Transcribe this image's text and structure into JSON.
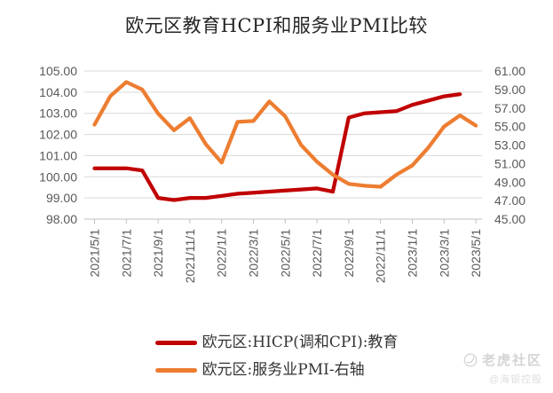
{
  "title": "欧元区教育HCPI和服务业PMI比较",
  "colors": {
    "hicp_line": "#C00000",
    "pmi_line": "#ED7D31",
    "gridline": "#D9D9D9",
    "axis_line": "#BFBFBF",
    "tick_text": "#595959",
    "title_text": "#262626",
    "legend_text": "#333333",
    "watermark_text": "#D4D4D4"
  },
  "chart_data": {
    "type": "line",
    "title": "欧元区教育HCPI和服务业PMI比较",
    "x": [
      "2021/5/1",
      "2021/6/1",
      "2021/7/1",
      "2021/8/1",
      "2021/9/1",
      "2021/10/1",
      "2021/11/1",
      "2021/12/1",
      "2022/1/1",
      "2022/2/1",
      "2022/3/1",
      "2022/4/1",
      "2022/5/1",
      "2022/6/1",
      "2022/7/1",
      "2022/8/1",
      "2022/9/1",
      "2022/10/1",
      "2022/11/1",
      "2022/12/1",
      "2023/1/1",
      "2023/2/1",
      "2023/3/1",
      "2023/4/1",
      "2023/5/1"
    ],
    "x_tick_every": 2,
    "x_tick_labels": [
      "2021/5/1",
      "2021/7/1",
      "2021/9/1",
      "2021/11/1",
      "2022/1/1",
      "2022/3/1",
      "2022/5/1",
      "2022/7/1",
      "2022/9/1",
      "2022/11/1",
      "2023/1/1",
      "2023/3/1",
      "2023/5/1"
    ],
    "series": [
      {
        "name": "欧元区:HICP(调和CPI):教育",
        "axis": "left",
        "color": "#C00000",
        "values": [
          100.4,
          100.4,
          100.4,
          100.3,
          99.0,
          98.9,
          99.0,
          99.0,
          99.1,
          99.2,
          99.25,
          99.3,
          99.35,
          99.4,
          99.45,
          99.3,
          102.8,
          103.0,
          103.05,
          103.1,
          103.4,
          103.6,
          103.8,
          103.9,
          null
        ]
      },
      {
        "name": "欧元区:服务业PMI-右轴",
        "axis": "right",
        "color": "#ED7D31",
        "values": [
          55.2,
          58.3,
          59.8,
          59.0,
          56.4,
          54.6,
          55.9,
          53.1,
          51.1,
          55.5,
          55.6,
          57.7,
          56.1,
          53.0,
          51.2,
          49.8,
          48.8,
          48.6,
          48.5,
          49.8,
          50.8,
          52.7,
          55.0,
          56.2,
          55.1
        ]
      }
    ],
    "left_axis": {
      "min": 98,
      "max": 105,
      "step": 1,
      "tick_labels": [
        "98.00",
        "99.00",
        "100.00",
        "101.00",
        "102.00",
        "103.00",
        "104.00",
        "105.00"
      ]
    },
    "right_axis": {
      "min": 45,
      "max": 61,
      "step": 2,
      "tick_labels": [
        "45.00",
        "47.00",
        "49.00",
        "51.00",
        "53.00",
        "55.00",
        "57.00",
        "59.00",
        "61.00"
      ]
    },
    "grid": true,
    "legend_position": "bottom"
  },
  "watermark": {
    "brand": "老虎社区",
    "handle": "@海银控股"
  }
}
